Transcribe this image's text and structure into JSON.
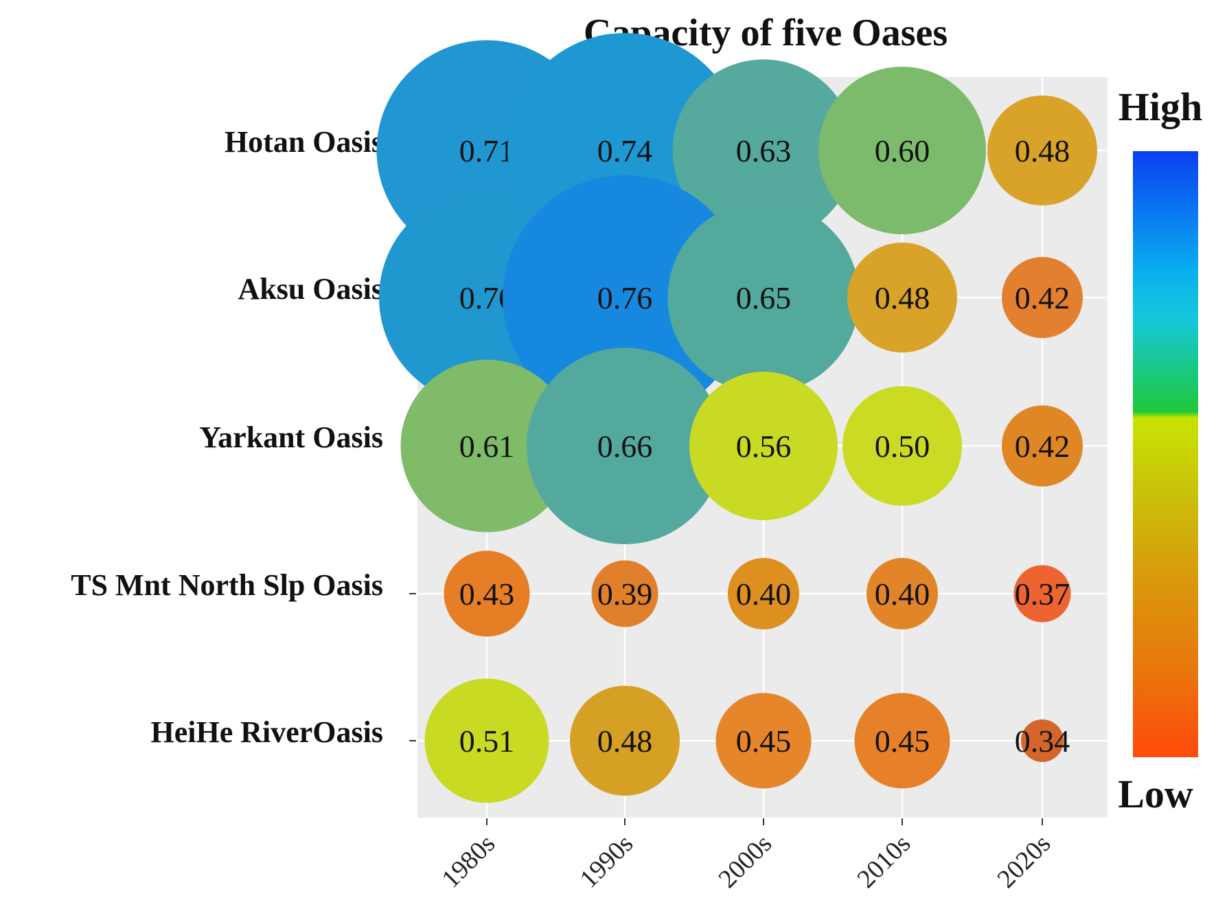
{
  "chart_data": {
    "type": "bubble-heatmap",
    "title": "Capacity of five Oases",
    "categories": [
      "1980s",
      "1990s",
      "2000s",
      "2010s",
      "2020s"
    ],
    "rows": [
      "Hotan Oasis",
      "Aksu Oasis",
      "Yarkant Oasis",
      "TS Mnt North Slp Oasis",
      "HeiHe RiverOasis"
    ],
    "values": [
      [
        0.71,
        0.74,
        0.63,
        0.6,
        0.48
      ],
      [
        0.7,
        0.76,
        0.65,
        0.48,
        0.42
      ],
      [
        0.61,
        0.66,
        0.56,
        0.5,
        0.42
      ],
      [
        0.43,
        0.39,
        0.4,
        0.4,
        0.37
      ],
      [
        0.51,
        0.48,
        0.45,
        0.45,
        0.34
      ]
    ],
    "value_labels": [
      [
        "0.71",
        "0.74",
        "0.63",
        "0.60",
        "0.48"
      ],
      [
        "0.70",
        "0.76",
        "0.65",
        "0.48",
        "0.42"
      ],
      [
        "0.61",
        "0.66",
        "0.56",
        "0.50",
        "0.42"
      ],
      [
        "0.43",
        "0.39",
        "0.40",
        "0.40",
        "0.37"
      ],
      [
        "0.51",
        "0.48",
        "0.45",
        "0.45",
        "0.34"
      ]
    ],
    "legend": {
      "high_label": "High",
      "low_label": "Low",
      "placement": "right",
      "colors": [
        "#0a3ff0",
        "#0ab0f0",
        "#16c8d8",
        "#1ec83a",
        "#c7e400",
        "#c9c20a",
        "#d99a0c",
        "#e8780c",
        "#ff4a0a"
      ]
    },
    "bubble_colors": [
      [
        "#2196d0",
        "#1e98d2",
        "#55a99d",
        "#7dbb6c",
        "#d9a228"
      ],
      [
        "#2197d0",
        "#1688e0",
        "#53a99b",
        "#d9a228",
        "#e38030"
      ],
      [
        "#80bb6a",
        "#53a99d",
        "#c9da24",
        "#cbdb23",
        "#df8725"
      ],
      [
        "#e67e25",
        "#e0802c",
        "#dd8f1f",
        "#e28528",
        "#ee6430"
      ],
      [
        "#c9da22",
        "#d6a024",
        "#e7852b",
        "#e6812a",
        "#d4652b"
      ]
    ],
    "panel_background": "#ebebeb"
  }
}
